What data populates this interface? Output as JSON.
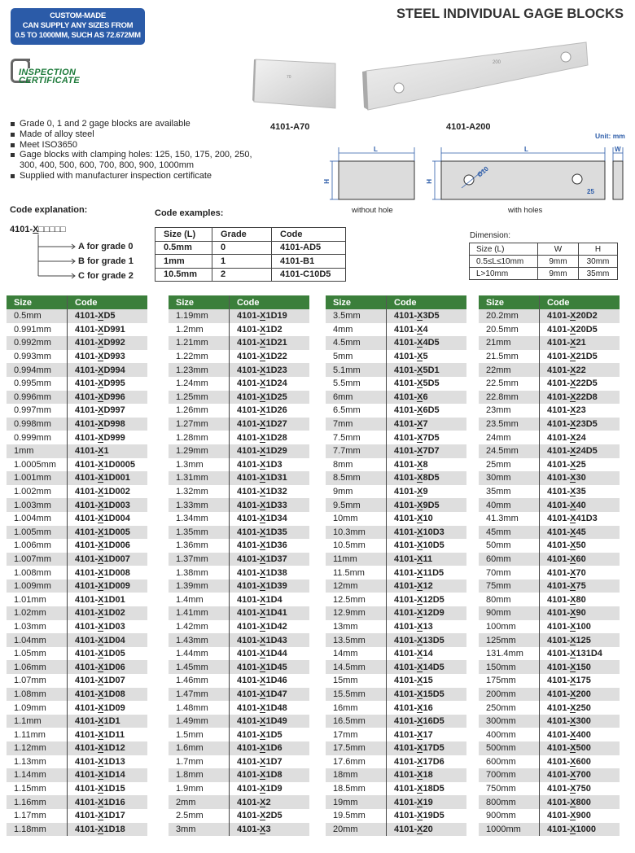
{
  "banner": {
    "lines": [
      "CUSTOM-MADE",
      "CAN SUPPLY ANY SIZES FROM",
      "0.5 TO 1000MM, SUCH AS 72.672MM"
    ],
    "color": "#2b5ba8"
  },
  "title": "STEEL INDIVIDUAL GAGE BLOCKS",
  "logo": {
    "line1": "INSPECTION",
    "line2": "CERTIFICATE",
    "color": "#1d7a3a"
  },
  "bullets": [
    "Grade 0, 1 and 2 gage blocks are available",
    "Made of alloy steel",
    "Meet ISO3650",
    "Gage blocks with clamping holes: 125, 150, 175, 200, 250, 300, 400, 500, 600, 700, 800, 900, 1000mm",
    "Supplied with manufacturer inspection certificate"
  ],
  "products": [
    {
      "code": "4101-A70",
      "engraving": "70"
    },
    {
      "code": "4101-A200",
      "engraving": "200"
    }
  ],
  "drawings": {
    "unit": "Unit: mm",
    "L": "L",
    "H": "H",
    "W": "W",
    "hole_dia": "Ø10",
    "hole_offset": "25",
    "without_hole": "without hole",
    "with_holes": "with holes"
  },
  "code_explanation": {
    "title": "Code explanation:",
    "pattern_prefix": "4101-",
    "pattern_x": "X",
    "pattern_boxes": "□□□□□",
    "grades": [
      "A for grade 0",
      "B for grade 1",
      "C for grade 2"
    ]
  },
  "code_examples": {
    "title": "Code examples:",
    "headers": [
      "Size (L)",
      "Grade",
      "Code"
    ],
    "rows": [
      [
        "0.5mm",
        "0",
        "4101-AD5"
      ],
      [
        "1mm",
        "1",
        "4101-B1"
      ],
      [
        "10.5mm",
        "2",
        "4101-C10D5"
      ]
    ]
  },
  "dimension": {
    "title": "Dimension:",
    "headers": [
      "Size (L)",
      "W",
      "H"
    ],
    "rows": [
      [
        "0.5≤L≤10mm",
        "9mm",
        "30mm"
      ],
      [
        "L>10mm",
        "9mm",
        "35mm"
      ]
    ]
  },
  "size_table": {
    "headers": [
      "Size",
      "Code"
    ],
    "header_color": "#3b7f3b",
    "columns": [
      [
        [
          "0.5mm",
          "4101-XD5"
        ],
        [
          "0.991mm",
          "4101-XD991"
        ],
        [
          "0.992mm",
          "4101-XD992"
        ],
        [
          "0.993mm",
          "4101-XD993"
        ],
        [
          "0.994mm",
          "4101-XD994"
        ],
        [
          "0.995mm",
          "4101-XD995"
        ],
        [
          "0.996mm",
          "4101-XD996"
        ],
        [
          "0.997mm",
          "4101-XD997"
        ],
        [
          "0.998mm",
          "4101-XD998"
        ],
        [
          "0.999mm",
          "4101-XD999"
        ],
        [
          "1mm",
          "4101-X1"
        ],
        [
          "1.0005mm",
          "4101-X1D0005"
        ],
        [
          "1.001mm",
          "4101-X1D001"
        ],
        [
          "1.002mm",
          "4101-X1D002"
        ],
        [
          "1.003mm",
          "4101-X1D003"
        ],
        [
          "1.004mm",
          "4101-X1D004"
        ],
        [
          "1.005mm",
          "4101-X1D005"
        ],
        [
          "1.006mm",
          "4101-X1D006"
        ],
        [
          "1.007mm",
          "4101-X1D007"
        ],
        [
          "1.008mm",
          "4101-X1D008"
        ],
        [
          "1.009mm",
          "4101-X1D009"
        ],
        [
          "1.01mm",
          "4101-X1D01"
        ],
        [
          "1.02mm",
          "4101-X1D02"
        ],
        [
          "1.03mm",
          "4101-X1D03"
        ],
        [
          "1.04mm",
          "4101-X1D04"
        ],
        [
          "1.05mm",
          "4101-X1D05"
        ],
        [
          "1.06mm",
          "4101-X1D06"
        ],
        [
          "1.07mm",
          "4101-X1D07"
        ],
        [
          "1.08mm",
          "4101-X1D08"
        ],
        [
          "1.09mm",
          "4101-X1D09"
        ],
        [
          "1.1mm",
          "4101-X1D1"
        ],
        [
          "1.11mm",
          "4101-X1D11"
        ],
        [
          "1.12mm",
          "4101-X1D12"
        ],
        [
          "1.13mm",
          "4101-X1D13"
        ],
        [
          "1.14mm",
          "4101-X1D14"
        ],
        [
          "1.15mm",
          "4101-X1D15"
        ],
        [
          "1.16mm",
          "4101-X1D16"
        ],
        [
          "1.17mm",
          "4101-X1D17"
        ],
        [
          "1.18mm",
          "4101-X1D18"
        ]
      ],
      [
        [
          "1.19mm",
          "4101-X1D19"
        ],
        [
          "1.2mm",
          "4101-X1D2"
        ],
        [
          "1.21mm",
          "4101-X1D21"
        ],
        [
          "1.22mm",
          "4101-X1D22"
        ],
        [
          "1.23mm",
          "4101-X1D23"
        ],
        [
          "1.24mm",
          "4101-X1D24"
        ],
        [
          "1.25mm",
          "4101-X1D25"
        ],
        [
          "1.26mm",
          "4101-X1D26"
        ],
        [
          "1.27mm",
          "4101-X1D27"
        ],
        [
          "1.28mm",
          "4101-X1D28"
        ],
        [
          "1.29mm",
          "4101-X1D29"
        ],
        [
          "1.3mm",
          "4101-X1D3"
        ],
        [
          "1.31mm",
          "4101-X1D31"
        ],
        [
          "1.32mm",
          "4101-X1D32"
        ],
        [
          "1.33mm",
          "4101-X1D33"
        ],
        [
          "1.34mm",
          "4101-X1D34"
        ],
        [
          "1.35mm",
          "4101-X1D35"
        ],
        [
          "1.36mm",
          "4101-X1D36"
        ],
        [
          "1.37mm",
          "4101-X1D37"
        ],
        [
          "1.38mm",
          "4101-X1D38"
        ],
        [
          "1.39mm",
          "4101-X1D39"
        ],
        [
          "1.4mm",
          "4101-X1D4"
        ],
        [
          "1.41mm",
          "4101-X1D41"
        ],
        [
          "1.42mm",
          "4101-X1D42"
        ],
        [
          "1.43mm",
          "4101-X1D43"
        ],
        [
          "1.44mm",
          "4101-X1D44"
        ],
        [
          "1.45mm",
          "4101-X1D45"
        ],
        [
          "1.46mm",
          "4101-X1D46"
        ],
        [
          "1.47mm",
          "4101-X1D47"
        ],
        [
          "1.48mm",
          "4101-X1D48"
        ],
        [
          "1.49mm",
          "4101-X1D49"
        ],
        [
          "1.5mm",
          "4101-X1D5"
        ],
        [
          "1.6mm",
          "4101-X1D6"
        ],
        [
          "1.7mm",
          "4101-X1D7"
        ],
        [
          "1.8mm",
          "4101-X1D8"
        ],
        [
          "1.9mm",
          "4101-X1D9"
        ],
        [
          "2mm",
          "4101-X2"
        ],
        [
          "2.5mm",
          "4101-X2D5"
        ],
        [
          "3mm",
          "4101-X3"
        ]
      ],
      [
        [
          "3.5mm",
          "4101-X3D5"
        ],
        [
          "4mm",
          "4101-X4"
        ],
        [
          "4.5mm",
          "4101-X4D5"
        ],
        [
          "5mm",
          "4101-X5"
        ],
        [
          "5.1mm",
          "4101-X5D1"
        ],
        [
          "5.5mm",
          "4101-X5D5"
        ],
        [
          "6mm",
          "4101-X6"
        ],
        [
          "6.5mm",
          "4101-X6D5"
        ],
        [
          "7mm",
          "4101-X7"
        ],
        [
          "7.5mm",
          "4101-X7D5"
        ],
        [
          "7.7mm",
          "4101-X7D7"
        ],
        [
          "8mm",
          "4101-X8"
        ],
        [
          "8.5mm",
          "4101-X8D5"
        ],
        [
          "9mm",
          "4101-X9"
        ],
        [
          "9.5mm",
          "4101-X9D5"
        ],
        [
          "10mm",
          "4101-X10"
        ],
        [
          "10.3mm",
          "4101-X10D3"
        ],
        [
          "10.5mm",
          "4101-X10D5"
        ],
        [
          "11mm",
          "4101-X11"
        ],
        [
          "11.5mm",
          "4101-X11D5"
        ],
        [
          "12mm",
          "4101-X12"
        ],
        [
          "12.5mm",
          "4101-X12D5"
        ],
        [
          "12.9mm",
          "4101-X12D9"
        ],
        [
          "13mm",
          "4101-X13"
        ],
        [
          "13.5mm",
          "4101-X13D5"
        ],
        [
          "14mm",
          "4101-X14"
        ],
        [
          "14.5mm",
          "4101-X14D5"
        ],
        [
          "15mm",
          "4101-X15"
        ],
        [
          "15.5mm",
          "4101-X15D5"
        ],
        [
          "16mm",
          "4101-X16"
        ],
        [
          "16.5mm",
          "4101-X16D5"
        ],
        [
          "17mm",
          "4101-X17"
        ],
        [
          "17.5mm",
          "4101-X17D5"
        ],
        [
          "17.6mm",
          "4101-X17D6"
        ],
        [
          "18mm",
          "4101-X18"
        ],
        [
          "18.5mm",
          "4101-X18D5"
        ],
        [
          "19mm",
          "4101-X19"
        ],
        [
          "19.5mm",
          "4101-X19D5"
        ],
        [
          "20mm",
          "4101-X20"
        ]
      ],
      [
        [
          "20.2mm",
          "4101-X20D2"
        ],
        [
          "20.5mm",
          "4101-X20D5"
        ],
        [
          "21mm",
          "4101-X21"
        ],
        [
          "21.5mm",
          "4101-X21D5"
        ],
        [
          "22mm",
          "4101-X22"
        ],
        [
          "22.5mm",
          "4101-X22D5"
        ],
        [
          "22.8mm",
          "4101-X22D8"
        ],
        [
          "23mm",
          "4101-X23"
        ],
        [
          "23.5mm",
          "4101-X23D5"
        ],
        [
          "24mm",
          "4101-X24"
        ],
        [
          "24.5mm",
          "4101-X24D5"
        ],
        [
          "25mm",
          "4101-X25"
        ],
        [
          "30mm",
          "4101-X30"
        ],
        [
          "35mm",
          "4101-X35"
        ],
        [
          "40mm",
          "4101-X40"
        ],
        [
          "41.3mm",
          "4101-X41D3"
        ],
        [
          "45mm",
          "4101-X45"
        ],
        [
          "50mm",
          "4101-X50"
        ],
        [
          "60mm",
          "4101-X60"
        ],
        [
          "70mm",
          "4101-X70"
        ],
        [
          "75mm",
          "4101-X75"
        ],
        [
          "80mm",
          "4101-X80"
        ],
        [
          "90mm",
          "4101-X90"
        ],
        [
          "100mm",
          "4101-X100"
        ],
        [
          "125mm",
          "4101-X125"
        ],
        [
          "131.4mm",
          "4101-X131D4"
        ],
        [
          "150mm",
          "4101-X150"
        ],
        [
          "175mm",
          "4101-X175"
        ],
        [
          "200mm",
          "4101-X200"
        ],
        [
          "250mm",
          "4101-X250"
        ],
        [
          "300mm",
          "4101-X300"
        ],
        [
          "400mm",
          "4101-X400"
        ],
        [
          "500mm",
          "4101-X500"
        ],
        [
          "600mm",
          "4101-X600"
        ],
        [
          "700mm",
          "4101-X700"
        ],
        [
          "750mm",
          "4101-X750"
        ],
        [
          "800mm",
          "4101-X800"
        ],
        [
          "900mm",
          "4101-X900"
        ],
        [
          "1000mm",
          "4101-X1000"
        ]
      ]
    ]
  }
}
